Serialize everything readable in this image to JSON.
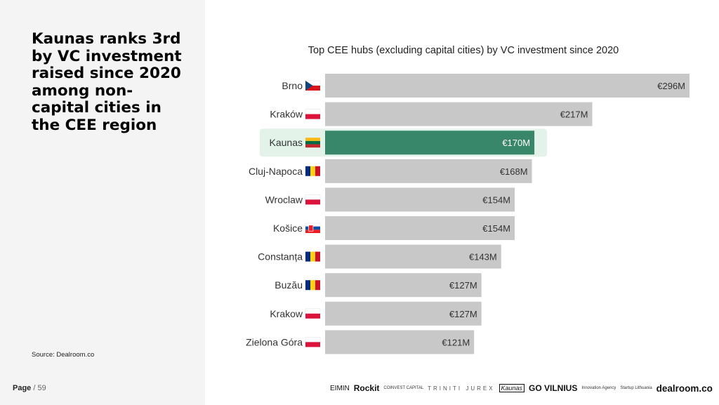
{
  "headline": "Kaunas ranks 3rd by VC investment raised since 2020 among non-capital cities in the CEE region",
  "source": "Source:  Dealroom.co",
  "page": {
    "label": "Page",
    "separator": " / ",
    "number": "59"
  },
  "logos": [
    "EIMIN",
    "Rockit",
    "COINVEST CAPITAL",
    "TRINITI JUREX",
    "Kaunas",
    "GO VILNIUS",
    "Innovation Agency",
    "Startup Lithuania",
    "dealroom.co"
  ],
  "colors": {
    "bar": "#c8c8c8",
    "highlight_bar": "#38876a",
    "highlight_bg": "#e3f3ea",
    "panel": "#f4f4f4"
  },
  "chart_data": {
    "type": "bar",
    "orientation": "horizontal",
    "title": "Top CEE hubs (excluding capital cities) by VC investment since 2020",
    "xlabel": "",
    "ylabel": "",
    "grid": false,
    "xlim": [
      0,
      296
    ],
    "categories": [
      "Brno",
      "Kraków",
      "Kaunas",
      "Cluj-Napoca",
      "Wroclaw",
      "Košice",
      "Constanța",
      "Buzău",
      "Krakow",
      "Zielona Góra"
    ],
    "flags": [
      "cz",
      "pl",
      "lt",
      "ro",
      "pl",
      "sk",
      "ro",
      "ro",
      "pl",
      "pl"
    ],
    "values": [
      296,
      217,
      170,
      168,
      154,
      154,
      143,
      127,
      127,
      121
    ],
    "value_labels": [
      "€296M",
      "€217M",
      "€170M",
      "€168M",
      "€154M",
      "€154M",
      "€143M",
      "€127M",
      "€127M",
      "€121M"
    ],
    "highlight": "Kaunas"
  }
}
